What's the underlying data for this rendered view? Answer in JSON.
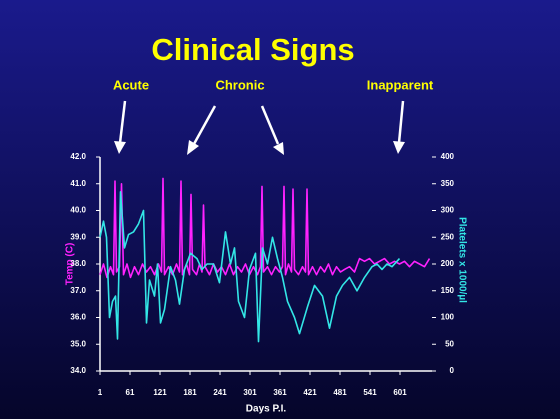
{
  "chart_data": {
    "type": "line",
    "title": "Clinical Signs",
    "annotations": [
      {
        "text": "Acute"
      },
      {
        "text": "Chronic"
      },
      {
        "text": "Inapparent"
      }
    ],
    "x_label": "Days P.I.",
    "y_label": "Temp (C)",
    "y2_label": "Platelets x 1000/µl",
    "xlim": [
      1,
      665
    ],
    "xticks": [
      1,
      61,
      121,
      181,
      241,
      301,
      361,
      421,
      481,
      541,
      601
    ],
    "ylim": [
      34,
      42
    ],
    "yticks": [
      {
        "value": 34,
        "label": "34.0"
      },
      {
        "value": 35,
        "label": "35.0"
      },
      {
        "value": 36,
        "label": "36.0"
      },
      {
        "value": 37,
        "label": "37.0"
      },
      {
        "value": 38,
        "label": "38.0"
      },
      {
        "value": 39,
        "label": "39.0"
      },
      {
        "value": 40,
        "label": "40.0"
      },
      {
        "value": 41,
        "label": "41.0"
      },
      {
        "value": 42,
        "label": "42.0"
      }
    ],
    "y2lim": [
      0,
      400
    ],
    "y2ticks": [
      0,
      50,
      100,
      150,
      200,
      250,
      300,
      350,
      400
    ],
    "series": [
      {
        "name": "Temp (C)",
        "color": "#ff22ff",
        "x": [
          1,
          8,
          15,
          22,
          28,
          31,
          34,
          40,
          44,
          48,
          55,
          62,
          70,
          78,
          86,
          94,
          102,
          110,
          118,
          124,
          127,
          130,
          138,
          146,
          154,
          160,
          163,
          166,
          174,
          180,
          183,
          186,
          194,
          200,
          205,
          208,
          211,
          220,
          228,
          236,
          244,
          252,
          260,
          268,
          276,
          284,
          292,
          300,
          308,
          316,
          322,
          325,
          328,
          336,
          344,
          352,
          360,
          366,
          369,
          372,
          378,
          384,
          387,
          390,
          398,
          406,
          412,
          415,
          418,
          426,
          434,
          442,
          450,
          458,
          466,
          474,
          482,
          490,
          500,
          510,
          520,
          530,
          540,
          550,
          560,
          570,
          580,
          590,
          600,
          610,
          620,
          630,
          640,
          650,
          660
        ],
        "values": [
          37.6,
          38.0,
          37.5,
          37.9,
          37.6,
          41.1,
          37.7,
          37.9,
          41.0,
          37.6,
          38.0,
          37.5,
          37.9,
          37.6,
          38.0,
          37.7,
          37.9,
          37.6,
          38.0,
          37.7,
          41.2,
          37.6,
          37.9,
          37.6,
          38.0,
          37.7,
          41.1,
          37.6,
          38.0,
          37.6,
          40.6,
          37.8,
          37.6,
          38.0,
          37.7,
          40.2,
          37.9,
          37.6,
          38.0,
          37.7,
          37.9,
          37.6,
          38.0,
          37.6,
          37.9,
          37.7,
          38.0,
          37.6,
          37.9,
          37.6,
          37.9,
          40.9,
          37.7,
          37.9,
          37.6,
          37.9,
          37.7,
          37.9,
          40.9,
          37.6,
          38.0,
          37.7,
          40.8,
          37.8,
          37.6,
          37.9,
          37.7,
          40.8,
          37.6,
          37.9,
          37.6,
          37.9,
          37.7,
          38.0,
          37.6,
          37.9,
          37.7,
          37.8,
          37.9,
          37.7,
          38.2,
          38.1,
          38.2,
          38.0,
          38.1,
          38.2,
          38.0,
          38.1,
          38.0,
          38.1,
          37.9,
          38.1,
          38.0,
          37.9,
          38.2
        ]
      },
      {
        "name": "Platelets x 1000/µl",
        "color": "#33e6e6",
        "axis": "y2",
        "x": [
          1,
          8,
          14,
          20,
          26,
          32,
          36,
          42,
          50,
          58,
          68,
          78,
          88,
          94,
          100,
          110,
          116,
          122,
          130,
          142,
          152,
          160,
          170,
          182,
          195,
          205,
          215,
          228,
          240,
          252,
          262,
          270,
          278,
          290,
          300,
          312,
          318,
          326,
          336,
          346,
          356,
          366,
          376,
          390,
          400,
          416,
          430,
          446,
          460,
          474,
          486,
          500,
          515,
          530,
          545,
          555,
          565,
          575,
          585,
          600
        ],
        "values": [
          250,
          280,
          250,
          100,
          130,
          140,
          60,
          335,
          230,
          255,
          260,
          275,
          300,
          90,
          170,
          140,
          200,
          90,
          115,
          195,
          170,
          125,
          190,
          220,
          210,
          190,
          200,
          200,
          165,
          260,
          200,
          230,
          130,
          100,
          190,
          220,
          55,
          230,
          200,
          250,
          210,
          175,
          130,
          100,
          70,
          120,
          160,
          140,
          80,
          140,
          160,
          175,
          150,
          175,
          195,
          200,
          190,
          200,
          195,
          210
        ]
      }
    ]
  }
}
